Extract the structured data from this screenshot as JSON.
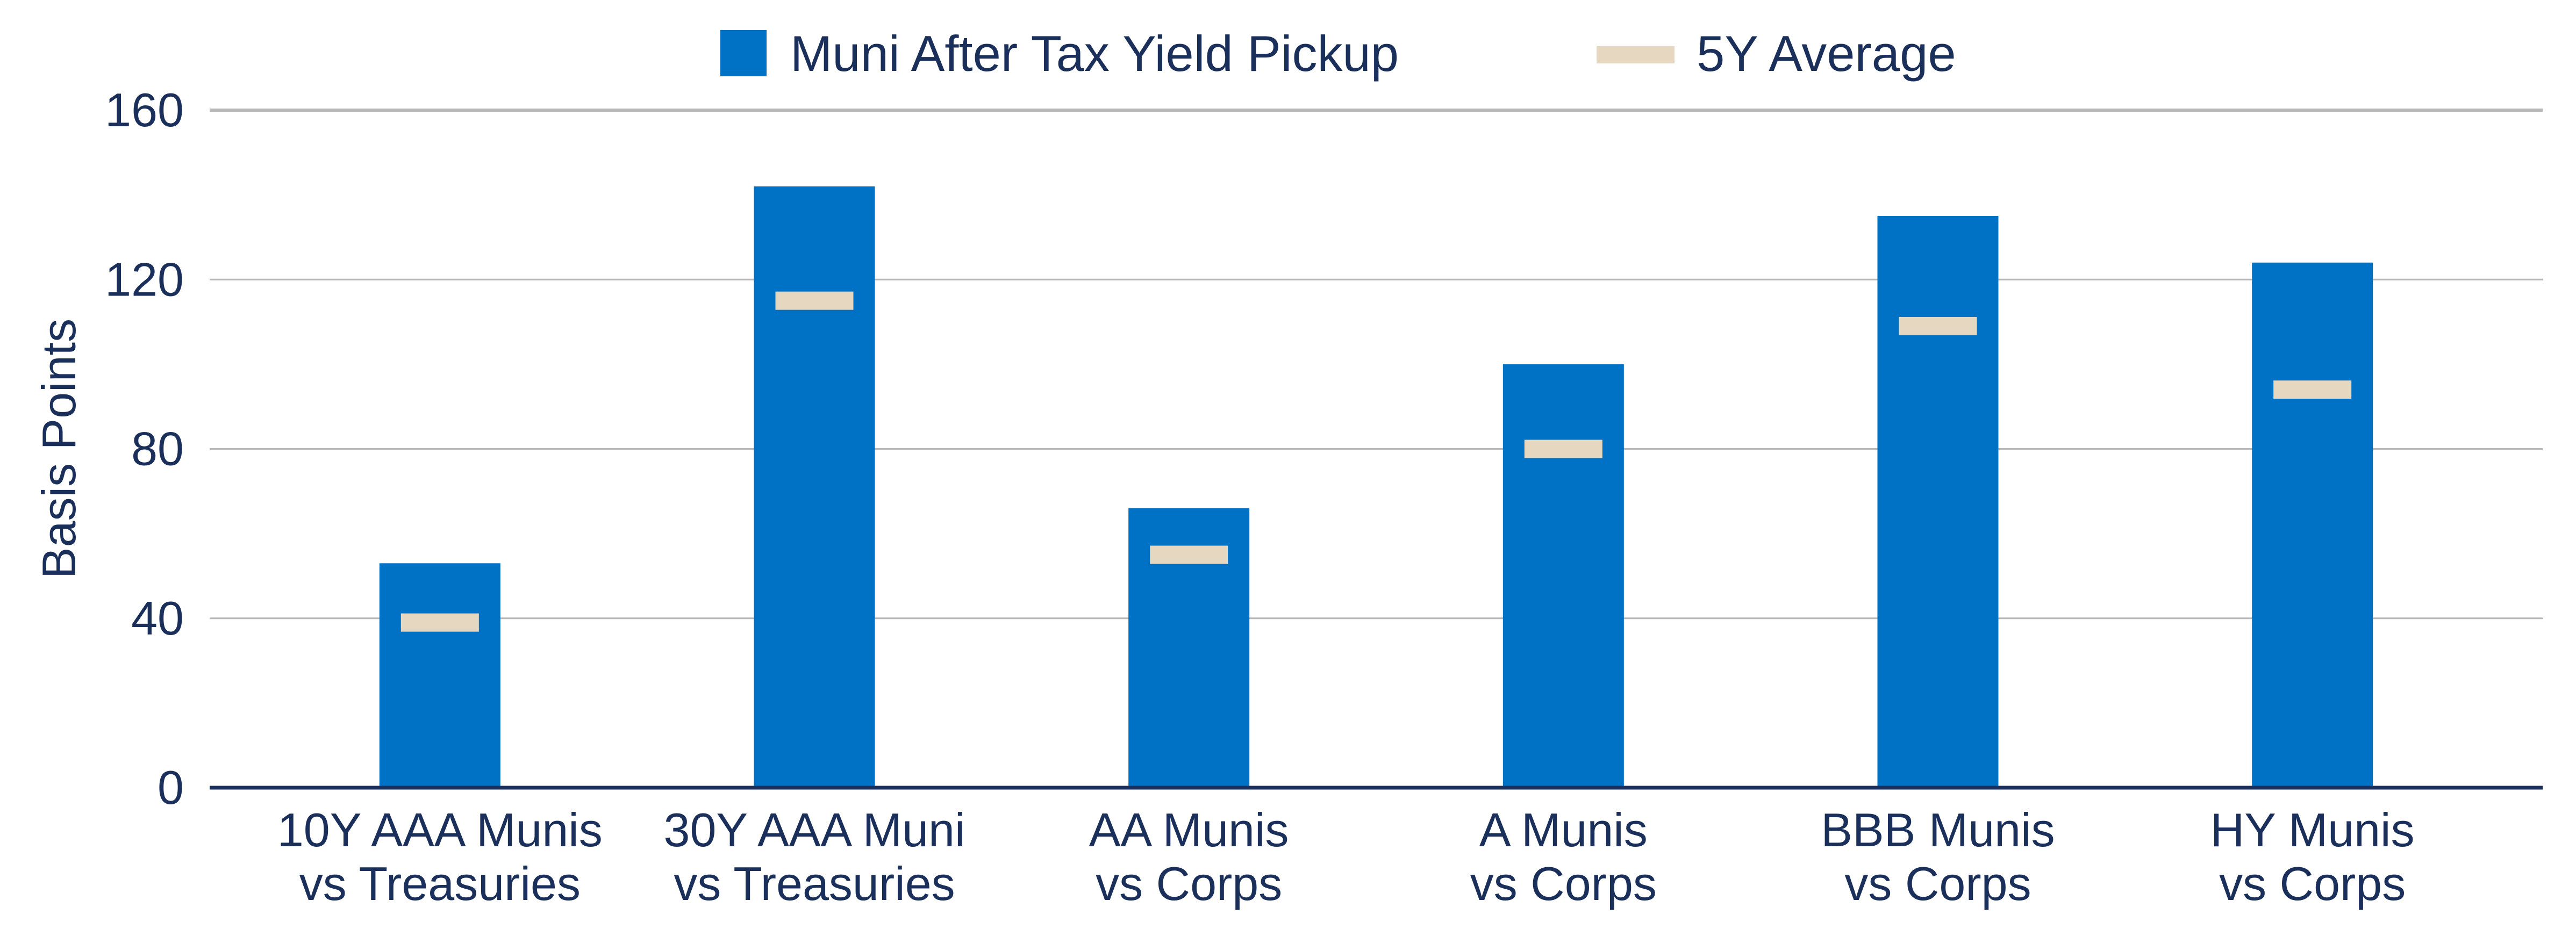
{
  "chart_data": {
    "type": "bar",
    "title": "",
    "xlabel": "",
    "ylabel": "Basis Points",
    "ylim": [
      0,
      160
    ],
    "yticks": [
      0,
      40,
      80,
      120,
      160
    ],
    "grid": true,
    "legend_position": "top-center",
    "categories": [
      [
        "10Y AAA Munis",
        "vs Treasuries"
      ],
      [
        "30Y AAA Muni",
        "vs Treasuries"
      ],
      [
        "AA Munis",
        "vs Corps"
      ],
      [
        "A Munis",
        "vs Corps"
      ],
      [
        "BBB Munis",
        "vs Corps"
      ],
      [
        "HY Munis",
        "vs Corps"
      ]
    ],
    "series": [
      {
        "name": "Muni After Tax Yield Pickup",
        "type": "bar",
        "color": "#0072c6",
        "values": [
          53,
          142,
          66,
          100,
          135,
          124
        ]
      },
      {
        "name": "5Y Average",
        "type": "marker",
        "color": "#e6d8c0",
        "values": [
          39,
          115,
          55,
          80,
          109,
          94
        ]
      }
    ]
  }
}
